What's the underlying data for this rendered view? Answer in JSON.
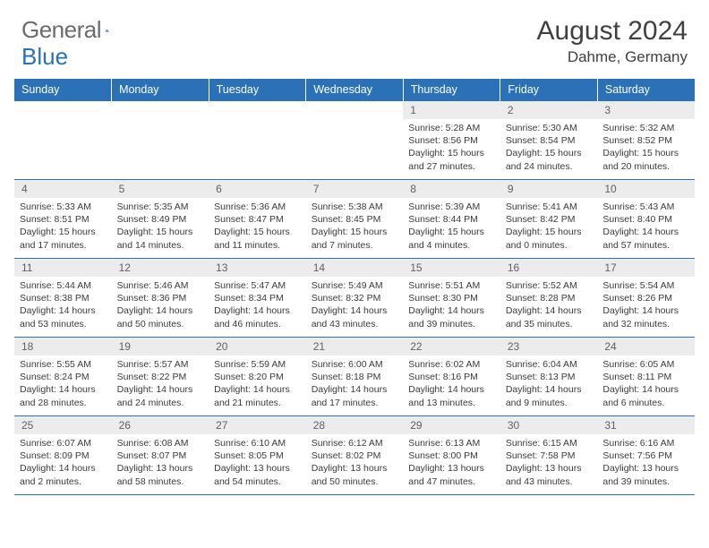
{
  "logo": {
    "text1": "General",
    "text2": "Blue"
  },
  "title": "August 2024",
  "location": "Dahme, Germany",
  "colors": {
    "header_bg": "#2a71b8",
    "header_fg": "#ffffff",
    "daynum_bg": "#ececec",
    "border": "#2a71b8"
  },
  "weekdays": [
    "Sunday",
    "Monday",
    "Tuesday",
    "Wednesday",
    "Thursday",
    "Friday",
    "Saturday"
  ],
  "weeks": [
    [
      {
        "n": "",
        "sr": "",
        "ss": "",
        "dl": ""
      },
      {
        "n": "",
        "sr": "",
        "ss": "",
        "dl": ""
      },
      {
        "n": "",
        "sr": "",
        "ss": "",
        "dl": ""
      },
      {
        "n": "",
        "sr": "",
        "ss": "",
        "dl": ""
      },
      {
        "n": "1",
        "sr": "5:28 AM",
        "ss": "8:56 PM",
        "dl": "15 hours and 27 minutes."
      },
      {
        "n": "2",
        "sr": "5:30 AM",
        "ss": "8:54 PM",
        "dl": "15 hours and 24 minutes."
      },
      {
        "n": "3",
        "sr": "5:32 AM",
        "ss": "8:52 PM",
        "dl": "15 hours and 20 minutes."
      }
    ],
    [
      {
        "n": "4",
        "sr": "5:33 AM",
        "ss": "8:51 PM",
        "dl": "15 hours and 17 minutes."
      },
      {
        "n": "5",
        "sr": "5:35 AM",
        "ss": "8:49 PM",
        "dl": "15 hours and 14 minutes."
      },
      {
        "n": "6",
        "sr": "5:36 AM",
        "ss": "8:47 PM",
        "dl": "15 hours and 11 minutes."
      },
      {
        "n": "7",
        "sr": "5:38 AM",
        "ss": "8:45 PM",
        "dl": "15 hours and 7 minutes."
      },
      {
        "n": "8",
        "sr": "5:39 AM",
        "ss": "8:44 PM",
        "dl": "15 hours and 4 minutes."
      },
      {
        "n": "9",
        "sr": "5:41 AM",
        "ss": "8:42 PM",
        "dl": "15 hours and 0 minutes."
      },
      {
        "n": "10",
        "sr": "5:43 AM",
        "ss": "8:40 PM",
        "dl": "14 hours and 57 minutes."
      }
    ],
    [
      {
        "n": "11",
        "sr": "5:44 AM",
        "ss": "8:38 PM",
        "dl": "14 hours and 53 minutes."
      },
      {
        "n": "12",
        "sr": "5:46 AM",
        "ss": "8:36 PM",
        "dl": "14 hours and 50 minutes."
      },
      {
        "n": "13",
        "sr": "5:47 AM",
        "ss": "8:34 PM",
        "dl": "14 hours and 46 minutes."
      },
      {
        "n": "14",
        "sr": "5:49 AM",
        "ss": "8:32 PM",
        "dl": "14 hours and 43 minutes."
      },
      {
        "n": "15",
        "sr": "5:51 AM",
        "ss": "8:30 PM",
        "dl": "14 hours and 39 minutes."
      },
      {
        "n": "16",
        "sr": "5:52 AM",
        "ss": "8:28 PM",
        "dl": "14 hours and 35 minutes."
      },
      {
        "n": "17",
        "sr": "5:54 AM",
        "ss": "8:26 PM",
        "dl": "14 hours and 32 minutes."
      }
    ],
    [
      {
        "n": "18",
        "sr": "5:55 AM",
        "ss": "8:24 PM",
        "dl": "14 hours and 28 minutes."
      },
      {
        "n": "19",
        "sr": "5:57 AM",
        "ss": "8:22 PM",
        "dl": "14 hours and 24 minutes."
      },
      {
        "n": "20",
        "sr": "5:59 AM",
        "ss": "8:20 PM",
        "dl": "14 hours and 21 minutes."
      },
      {
        "n": "21",
        "sr": "6:00 AM",
        "ss": "8:18 PM",
        "dl": "14 hours and 17 minutes."
      },
      {
        "n": "22",
        "sr": "6:02 AM",
        "ss": "8:16 PM",
        "dl": "14 hours and 13 minutes."
      },
      {
        "n": "23",
        "sr": "6:04 AM",
        "ss": "8:13 PM",
        "dl": "14 hours and 9 minutes."
      },
      {
        "n": "24",
        "sr": "6:05 AM",
        "ss": "8:11 PM",
        "dl": "14 hours and 6 minutes."
      }
    ],
    [
      {
        "n": "25",
        "sr": "6:07 AM",
        "ss": "8:09 PM",
        "dl": "14 hours and 2 minutes."
      },
      {
        "n": "26",
        "sr": "6:08 AM",
        "ss": "8:07 PM",
        "dl": "13 hours and 58 minutes."
      },
      {
        "n": "27",
        "sr": "6:10 AM",
        "ss": "8:05 PM",
        "dl": "13 hours and 54 minutes."
      },
      {
        "n": "28",
        "sr": "6:12 AM",
        "ss": "8:02 PM",
        "dl": "13 hours and 50 minutes."
      },
      {
        "n": "29",
        "sr": "6:13 AM",
        "ss": "8:00 PM",
        "dl": "13 hours and 47 minutes."
      },
      {
        "n": "30",
        "sr": "6:15 AM",
        "ss": "7:58 PM",
        "dl": "13 hours and 43 minutes."
      },
      {
        "n": "31",
        "sr": "6:16 AM",
        "ss": "7:56 PM",
        "dl": "13 hours and 39 minutes."
      }
    ]
  ],
  "labels": {
    "sunrise": "Sunrise: ",
    "sunset": "Sunset: ",
    "daylight": "Daylight: "
  }
}
